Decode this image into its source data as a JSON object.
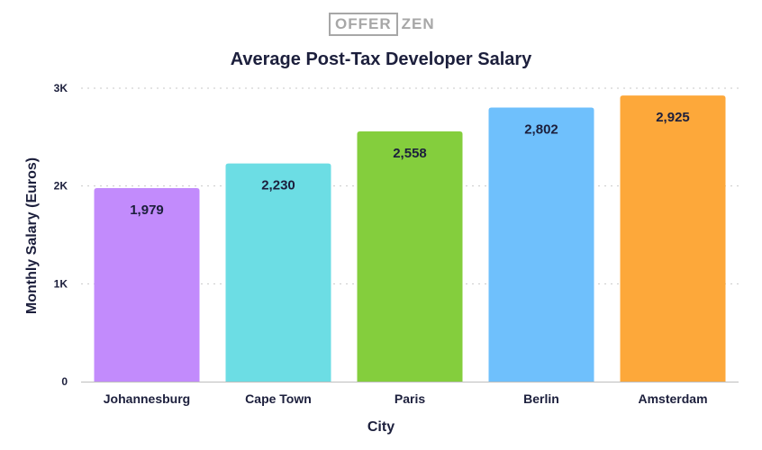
{
  "logo": {
    "left": "OFFER",
    "right": "ZEN"
  },
  "chart_data": {
    "type": "bar",
    "title": "Average Post-Tax Developer Salary",
    "xlabel": "City",
    "ylabel": "Monthly Salary (Euros)",
    "categories": [
      "Johannesburg",
      "Cape Town",
      "Paris",
      "Berlin",
      "Amsterdam"
    ],
    "values": [
      1979,
      2230,
      2558,
      2802,
      2925
    ],
    "value_labels": [
      "1,979",
      "2,230",
      "2,558",
      "2,802",
      "2,925"
    ],
    "colors": [
      "#c28bfc",
      "#6cdde4",
      "#84ce3d",
      "#6fc0fc",
      "#fda83a"
    ],
    "ylim": [
      0,
      3000
    ],
    "yticks": [
      0,
      1000,
      2000,
      3000
    ],
    "ytick_labels": [
      "0",
      "1K",
      "2K",
      "3K"
    ],
    "grid": true
  }
}
